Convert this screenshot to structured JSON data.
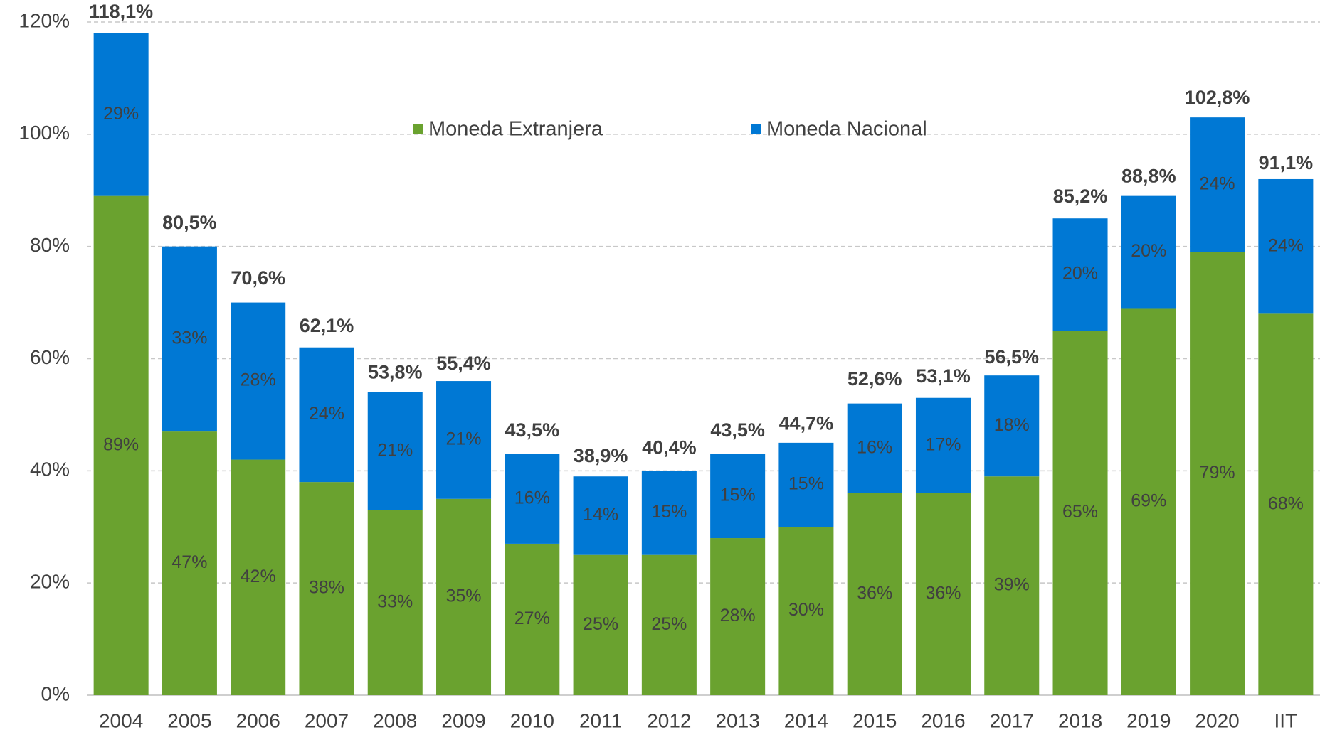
{
  "chart_data": {
    "type": "stacked_bar",
    "categories": [
      "2004",
      "2005",
      "2006",
      "2007",
      "2008",
      "2009",
      "2010",
      "2011",
      "2012",
      "2013",
      "2014",
      "2015",
      "2016",
      "2017",
      "2018",
      "2019",
      "2020",
      "IIT"
    ],
    "series": [
      {
        "name": "Moneda Extranjera",
        "color": "#6aa22f",
        "values": [
          89,
          47,
          42,
          38,
          33,
          35,
          27,
          25,
          25,
          28,
          30,
          36,
          36,
          39,
          65,
          69,
          79,
          68
        ],
        "value_labels": [
          "89%",
          "47%",
          "42%",
          "38%",
          "33%",
          "35%",
          "27%",
          "25%",
          "25%",
          "28%",
          "30%",
          "36%",
          "36%",
          "39%",
          "65%",
          "69%",
          "79%",
          "68%"
        ]
      },
      {
        "name": "Moneda Nacional",
        "color": "#0078d4",
        "values": [
          29,
          33,
          28,
          24,
          21,
          21,
          16,
          14,
          15,
          15,
          15,
          16,
          17,
          18,
          20,
          20,
          24,
          24
        ],
        "value_labels": [
          "29%",
          "33%",
          "28%",
          "24%",
          "21%",
          "21%",
          "16%",
          "14%",
          "15%",
          "15%",
          "15%",
          "16%",
          "17%",
          "18%",
          "20%",
          "20%",
          "24%",
          "24%"
        ]
      }
    ],
    "totals": {
      "values": [
        118.1,
        80.5,
        70.6,
        62.1,
        53.8,
        55.4,
        43.5,
        38.9,
        40.4,
        43.5,
        44.7,
        52.6,
        53.1,
        56.5,
        85.2,
        88.8,
        102.8,
        91.1
      ],
      "value_labels": [
        "118,1%",
        "80,5%",
        "70,6%",
        "62,1%",
        "53,8%",
        "55,4%",
        "43,5%",
        "38,9%",
        "40,4%",
        "43,5%",
        "44,7%",
        "52,6%",
        "53,1%",
        "56,5%",
        "85,2%",
        "88,8%",
        "102,8%",
        "91,1%"
      ]
    },
    "ylim": [
      0,
      120
    ],
    "yticks": [
      {
        "value": 0,
        "label": "0%"
      },
      {
        "value": 20,
        "label": "20%"
      },
      {
        "value": 40,
        "label": "40%"
      },
      {
        "value": 60,
        "label": "60%"
      },
      {
        "value": 80,
        "label": "80%"
      },
      {
        "value": 100,
        "label": "100%"
      },
      {
        "value": 120,
        "label": "120%"
      }
    ],
    "grid": true,
    "legend": "top"
  }
}
